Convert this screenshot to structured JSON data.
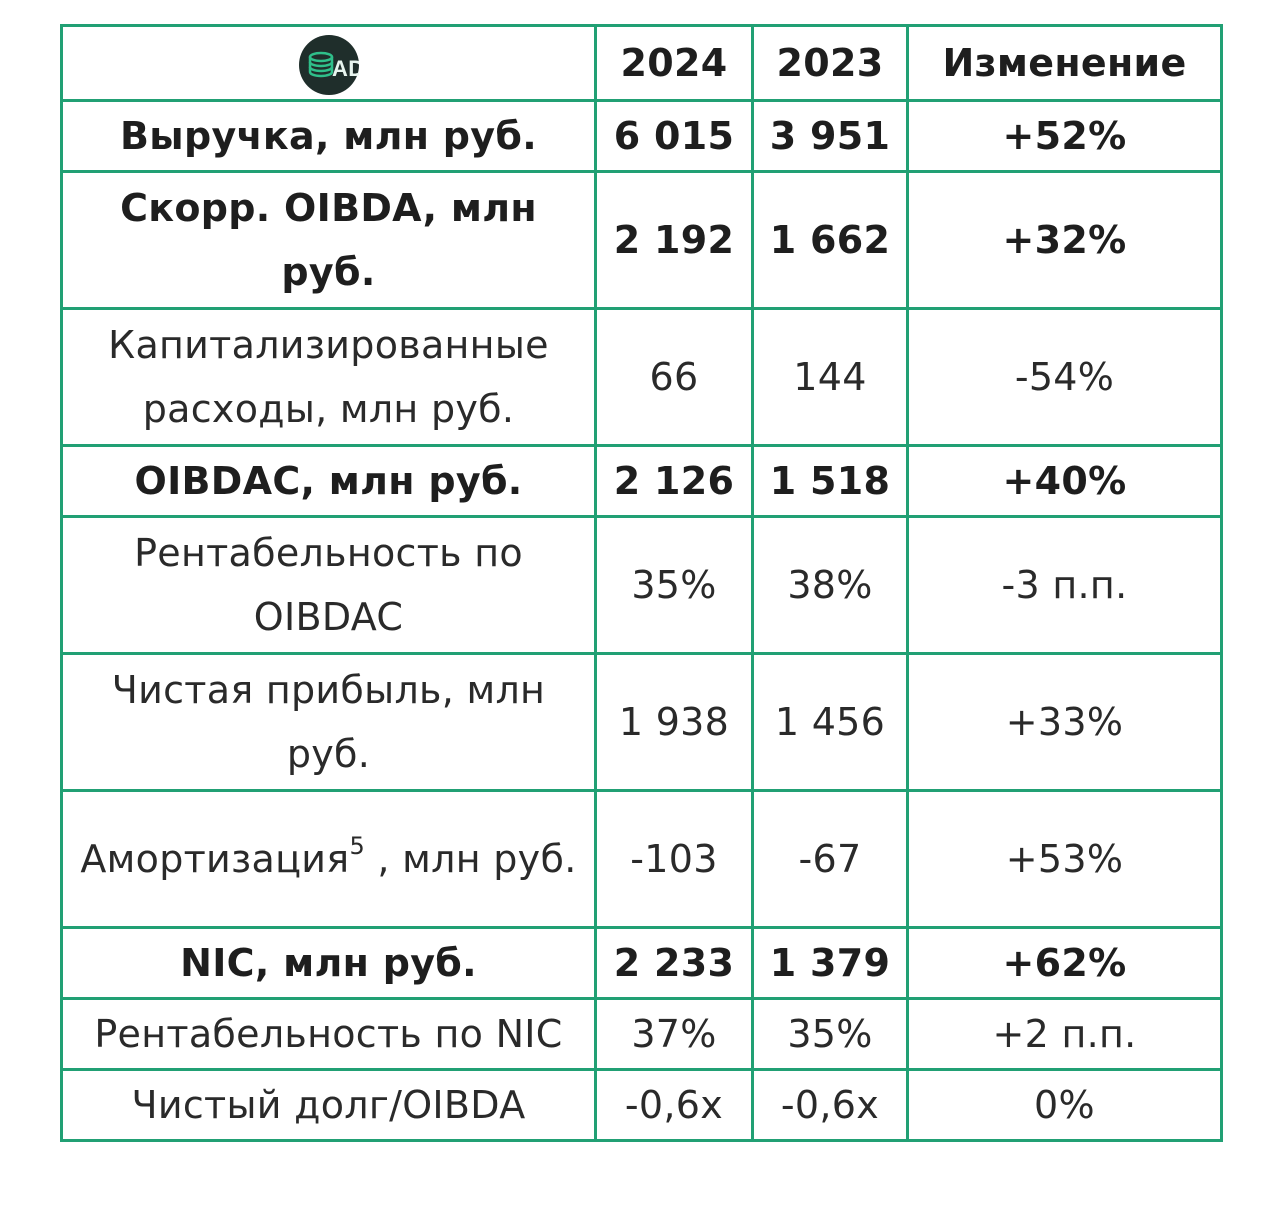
{
  "header": {
    "logo_text": "AD",
    "col_2024": "2024",
    "col_2023": "2023",
    "col_change": "Изменение"
  },
  "rows": [
    {
      "label": "Выручка, млн руб.",
      "v2024": "6 015",
      "v2023": "3 951",
      "change": "+52%"
    },
    {
      "label": "Скорр. OIBDA, млн руб.",
      "v2024": "2 192",
      "v2023": "1 662",
      "change": "+32%"
    },
    {
      "label": "Капитализированные расходы, млн руб.",
      "v2024": "66",
      "v2023": "144",
      "change": "-54%"
    },
    {
      "label": "OIBDAC, млн руб.",
      "v2024": "2 126",
      "v2023": "1 518",
      "change": "+40%"
    },
    {
      "label": "Рентабельность по OIBDAC",
      "v2024": "35%",
      "v2023": "38%",
      "change": "-3 п.п."
    },
    {
      "label": "Чистая прибыль, млн руб.",
      "v2024": "1 938",
      "v2023": "1 456",
      "change": "+33%"
    },
    {
      "label_main": "Амортизация",
      "label_sup": "5",
      "label_rest": " , млн руб.",
      "v2024": "-103",
      "v2023": "-67",
      "change": "+53%"
    },
    {
      "label": "NIC, млн руб.",
      "v2024": "2 233",
      "v2023": "1 379",
      "change": "+62%"
    },
    {
      "label": "Рентабельность по NIC",
      "v2024": "37%",
      "v2023": "35%",
      "change": "+2 п.п."
    },
    {
      "label": "Чистый долг/OIBDA",
      "v2024": "-0,6x",
      "v2023": "-0,6x",
      "change": "0%"
    }
  ],
  "colors": {
    "border": "#21a074",
    "logo_bg": "#1f2e2b",
    "logo_accent": "#2fbf8a"
  }
}
